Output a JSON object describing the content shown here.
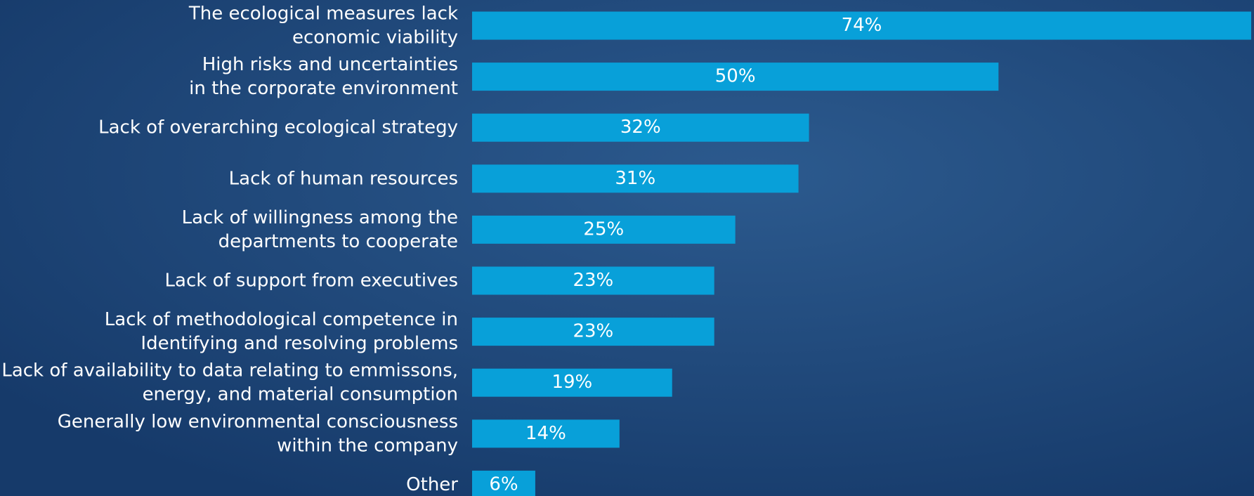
{
  "chart_data": {
    "type": "barh",
    "categories": [
      "The ecological measures lack\neconomic viability",
      "High risks and uncertainties\nin the corporate environment",
      "Lack of overarching ecological strategy",
      "Lack of human resources",
      "Lack of willingness among the\ndepartments to cooperate",
      "Lack of support from executives",
      "Lack of methodological competence in\nIdentifying and resolving problems",
      "Lack of availability to data relating to emmissons,\nenergy, and material consumption",
      "Generally low environmental consciousness\nwithin the company",
      "Other"
    ],
    "values": [
      74,
      50,
      32,
      31,
      25,
      23,
      23,
      19,
      14,
      6
    ],
    "value_labels": [
      "74%",
      "50%",
      "32%",
      "31%",
      "25%",
      "23%",
      "23%",
      "19%",
      "14%",
      "6%"
    ],
    "color": "#08a0d9",
    "xlim": [
      0,
      74
    ]
  }
}
